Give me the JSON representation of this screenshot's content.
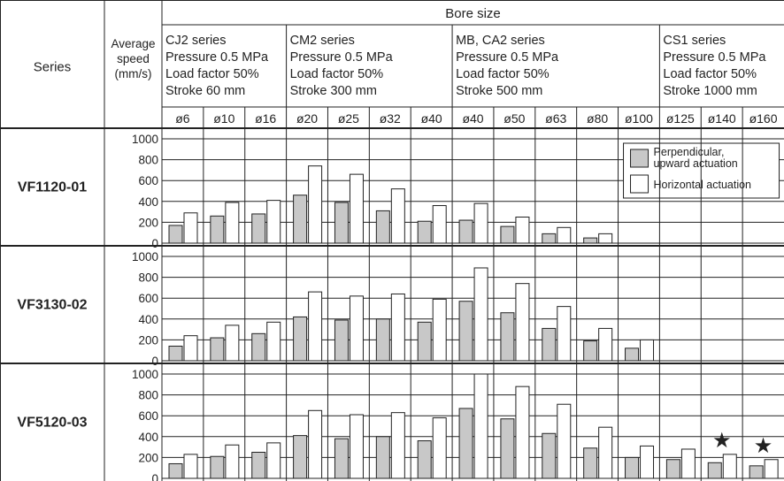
{
  "header": {
    "series_label": "Series",
    "speed_label": [
      "Average",
      "speed",
      "(mm/s)"
    ],
    "bore_size_label": "Bore size"
  },
  "groups": [
    {
      "lines": [
        "CJ2 series",
        "Pressure 0.5 MPa",
        "Load factor 50%",
        "Stroke 60 mm"
      ],
      "span": 3
    },
    {
      "lines": [
        "CM2 series",
        "Pressure 0.5 MPa",
        "Load factor 50%",
        "Stroke 300 mm"
      ],
      "span": 4
    },
    {
      "lines": [
        "MB, CA2 series",
        "Pressure 0.5 MPa",
        "Load factor 50%",
        "Stroke 500 mm"
      ],
      "span": 5
    },
    {
      "lines": [
        "CS1 series",
        "Pressure 0.5 MPa",
        "Load factor 50%",
        "Stroke 1000 mm"
      ],
      "span": 3
    }
  ],
  "legend": {
    "perpendicular_lines": [
      "Perpendicular,",
      "upward actuation"
    ],
    "horizontal": "Horizontal actuation"
  },
  "colors": {
    "perpendicular": "#c8c8c8",
    "horizontal": "#ffffff",
    "stroke": "#222222"
  },
  "star_symbol": "★",
  "chart_data": {
    "type": "bar",
    "categories": [
      "ø6",
      "ø10",
      "ø16",
      "ø20",
      "ø25",
      "ø32",
      "ø40",
      "ø40",
      "ø50",
      "ø63",
      "ø80",
      "ø100",
      "ø125",
      "ø140",
      "ø160"
    ],
    "ylim": [
      0,
      1000
    ],
    "yticks": [
      "0",
      "200",
      "400",
      "600",
      "800",
      "1000"
    ],
    "series_legend": [
      "Perpendicular, upward actuation",
      "Horizontal actuation"
    ],
    "panels": [
      {
        "name": "VF1120-01",
        "perpendicular": [
          170,
          260,
          280,
          460,
          390,
          310,
          210,
          220,
          160,
          90,
          50,
          null,
          null,
          null,
          null
        ],
        "horizontal": [
          290,
          390,
          410,
          740,
          660,
          520,
          360,
          380,
          250,
          150,
          90,
          null,
          null,
          null,
          null
        ],
        "stars": [
          false,
          false,
          false,
          false,
          false,
          false,
          false,
          false,
          false,
          false,
          false,
          false,
          false,
          false,
          false
        ]
      },
      {
        "name": "VF3130-02",
        "perpendicular": [
          140,
          220,
          260,
          420,
          390,
          400,
          370,
          570,
          460,
          310,
          190,
          120,
          null,
          null,
          null
        ],
        "horizontal": [
          240,
          340,
          370,
          660,
          620,
          640,
          590,
          890,
          740,
          520,
          310,
          200,
          null,
          null,
          null
        ],
        "stars": [
          false,
          false,
          false,
          false,
          false,
          false,
          false,
          false,
          false,
          false,
          false,
          false,
          false,
          false,
          false
        ]
      },
      {
        "name": "VF5120-03",
        "perpendicular": [
          140,
          210,
          250,
          410,
          380,
          400,
          360,
          670,
          570,
          430,
          290,
          200,
          180,
          150,
          120
        ],
        "horizontal": [
          230,
          320,
          340,
          650,
          610,
          630,
          580,
          1000,
          880,
          710,
          490,
          310,
          280,
          230,
          180
        ],
        "stars": [
          false,
          false,
          false,
          false,
          false,
          false,
          false,
          false,
          false,
          false,
          false,
          false,
          false,
          true,
          true
        ]
      }
    ]
  }
}
